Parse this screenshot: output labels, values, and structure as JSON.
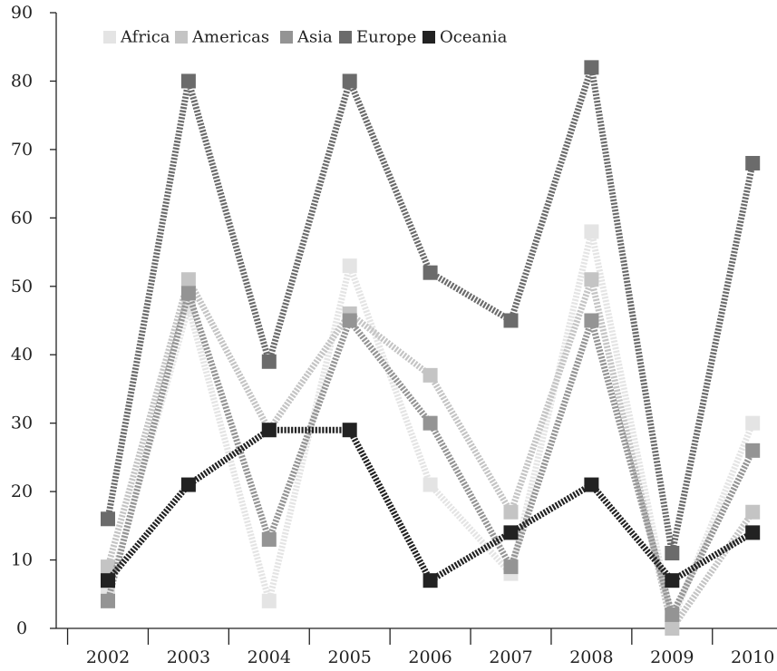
{
  "chart_data": {
    "type": "line",
    "title": "",
    "xlabel": "",
    "ylabel": "",
    "categories": [
      "2002",
      "2003",
      "2004",
      "2005",
      "2006",
      "2007",
      "2008",
      "2009",
      "2010"
    ],
    "ylim": [
      0,
      90
    ],
    "yticks": [
      "0",
      "10",
      "20",
      "30",
      "40",
      "50",
      "60",
      "70",
      "80",
      "90"
    ],
    "grid": false,
    "legend_position": "top-left",
    "series": [
      {
        "name": "Africa",
        "color": "#e4e4e4",
        "values": [
          5,
          47,
          4,
          53,
          21,
          8,
          58,
          1,
          30
        ]
      },
      {
        "name": "Americas",
        "color": "#c4c4c4",
        "values": [
          9,
          51,
          29,
          46,
          37,
          17,
          51,
          0,
          17
        ]
      },
      {
        "name": "Asia",
        "color": "#949494",
        "values": [
          4,
          49,
          13,
          45,
          30,
          9,
          45,
          2,
          26
        ]
      },
      {
        "name": "Europe",
        "color": "#6b6b6b",
        "values": [
          16,
          80,
          39,
          80,
          52,
          45,
          82,
          11,
          68
        ]
      },
      {
        "name": "Oceania",
        "color": "#222222",
        "values": [
          7,
          21,
          29,
          29,
          7,
          14,
          21,
          7,
          14
        ]
      }
    ]
  }
}
